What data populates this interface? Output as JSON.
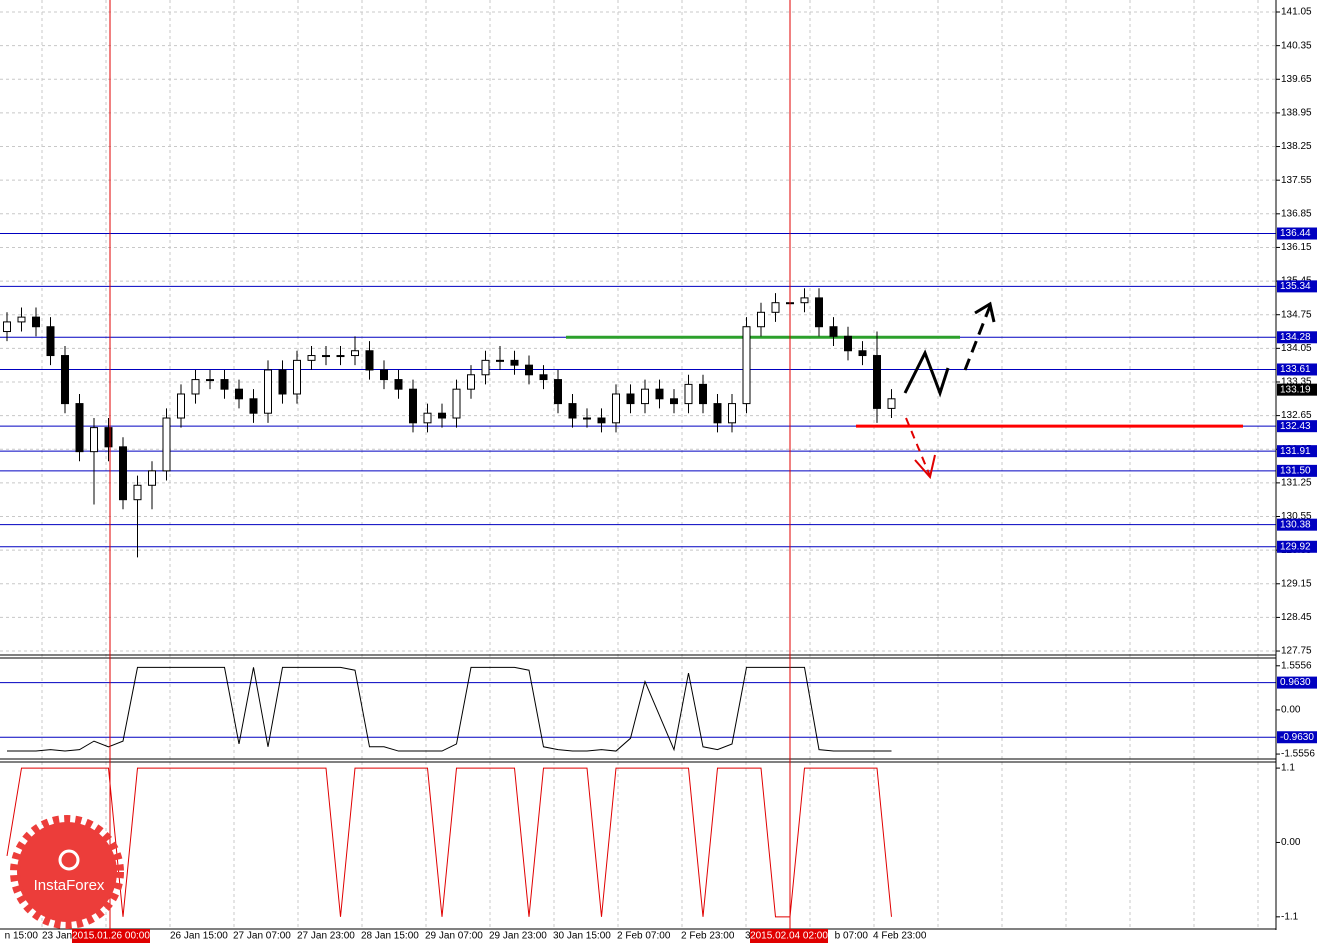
{
  "chart_data": [
    {
      "type": "candlestick",
      "open": [
        134.4,
        134.6,
        134.7,
        134.5,
        133.9,
        132.9,
        131.9,
        132.4,
        132.0,
        130.9,
        131.2,
        131.5,
        132.6,
        133.1,
        133.4,
        133.4,
        133.2,
        133.0,
        132.7,
        133.6,
        133.1,
        133.8,
        133.9,
        133.9,
        133.9,
        134.0,
        133.6,
        133.4,
        133.2,
        132.5,
        132.7,
        132.6,
        133.2,
        133.5,
        133.8,
        133.8,
        133.7,
        133.5,
        133.4,
        132.9,
        132.6,
        132.6,
        132.5,
        133.1,
        132.9,
        133.2,
        133.0,
        132.9,
        133.3,
        132.9,
        132.5,
        132.9,
        134.5,
        134.8,
        135.0,
        135.0,
        135.1,
        134.5,
        134.3,
        134.0,
        133.9,
        132.8
      ],
      "high": [
        134.8,
        134.9,
        134.9,
        134.7,
        134.1,
        133.1,
        132.6,
        132.6,
        132.2,
        131.4,
        131.7,
        132.8,
        133.3,
        133.6,
        133.6,
        133.6,
        133.4,
        133.2,
        133.8,
        133.8,
        134.0,
        134.1,
        134.1,
        134.1,
        134.3,
        134.2,
        133.8,
        133.6,
        133.4,
        132.9,
        132.9,
        133.4,
        133.7,
        134.0,
        134.1,
        134.0,
        133.9,
        133.7,
        133.6,
        133.1,
        132.8,
        132.8,
        133.3,
        133.3,
        133.4,
        133.4,
        133.2,
        133.5,
        133.5,
        133.1,
        133.1,
        134.7,
        135.0,
        135.2,
        135.3,
        135.3,
        135.3,
        134.7,
        134.5,
        134.2,
        134.4,
        133.2
      ],
      "low": [
        134.2,
        134.4,
        134.3,
        133.7,
        132.7,
        131.7,
        130.8,
        131.7,
        130.7,
        129.7,
        130.7,
        131.3,
        132.4,
        132.9,
        133.2,
        133.0,
        132.8,
        132.5,
        132.5,
        132.9,
        132.9,
        133.6,
        133.7,
        133.7,
        133.7,
        133.4,
        133.2,
        133.0,
        132.3,
        132.3,
        132.4,
        132.4,
        133.0,
        133.3,
        133.6,
        133.5,
        133.3,
        133.2,
        132.7,
        132.4,
        132.4,
        132.3,
        132.3,
        132.7,
        132.7,
        132.8,
        132.7,
        132.7,
        132.7,
        132.3,
        132.3,
        132.7,
        134.3,
        134.6,
        134.8,
        134.8,
        134.3,
        134.1,
        133.8,
        133.7,
        132.5,
        132.6
      ],
      "close": [
        134.6,
        134.7,
        134.5,
        133.9,
        132.9,
        131.9,
        132.4,
        132.0,
        130.9,
        131.2,
        131.5,
        132.6,
        133.1,
        133.4,
        133.4,
        133.2,
        133.0,
        132.7,
        133.6,
        133.1,
        133.8,
        133.9,
        133.9,
        133.9,
        134.0,
        133.6,
        133.4,
        133.2,
        132.5,
        132.7,
        132.6,
        133.2,
        133.5,
        133.8,
        133.8,
        133.7,
        133.5,
        133.4,
        132.9,
        132.6,
        132.6,
        132.5,
        133.1,
        132.9,
        133.2,
        133.0,
        132.9,
        133.3,
        132.9,
        132.5,
        132.9,
        134.5,
        134.8,
        135.0,
        135.0,
        135.1,
        134.5,
        134.3,
        134.0,
        133.9,
        132.8,
        133.0
      ],
      "ylim": [
        127.73,
        141.3
      ],
      "yticks": [
        127.75,
        128.45,
        129.15,
        129.85,
        130.55,
        131.25,
        131.95,
        132.65,
        133.35,
        134.05,
        134.75,
        135.45,
        136.15,
        136.85,
        137.55,
        138.25,
        138.95,
        139.65,
        140.35,
        141.05
      ],
      "levels": [
        136.44,
        135.34,
        134.28,
        133.61,
        132.43,
        131.91,
        {
          "value": 131.5,
          "label": "131.50"
        },
        130.38,
        129.92
      ],
      "level_color": "#0000c0",
      "current_price": 133.19,
      "trend_lines": [
        {
          "value": 134.28,
          "color": "#2ca02c"
        },
        {
          "value": 132.43,
          "color": "#ff0000"
        }
      ],
      "x_labels": [
        "n 15:00",
        "23 Jan",
        "26 Jan 15:00",
        "27 Jan 07:00",
        "27 Jan 23:00",
        "28 Jan 15:00",
        "29 Jan 07:00",
        "29 Jan 23:00",
        "30 Jan 15:00",
        "2 Feb 07:00",
        "2 Feb 23:00",
        "3",
        "b 07:00",
        "4 Feb 23:00"
      ],
      "time_markers": [
        "2015.01.26 00:00",
        "2015.02.04 02:00"
      ]
    },
    {
      "type": "line",
      "color": "#000000",
      "values": [
        -1.45,
        -1.45,
        -1.45,
        -1.4,
        -1.45,
        -1.4,
        -1.1,
        -1.3,
        -1.1,
        1.5,
        1.5,
        1.5,
        1.5,
        1.5,
        1.5,
        1.5,
        -1.2,
        1.5,
        -1.3,
        1.5,
        1.5,
        1.5,
        1.5,
        1.5,
        1.4,
        -1.3,
        -1.3,
        -1.45,
        -1.45,
        -1.45,
        -1.45,
        -1.2,
        1.5,
        1.5,
        1.5,
        1.5,
        1.4,
        -1.3,
        -1.4,
        -1.45,
        -1.45,
        -1.4,
        -1.45,
        -1.0,
        1.0,
        -0.2,
        -1.4,
        1.3,
        -1.3,
        -1.4,
        -1.2,
        1.5,
        1.5,
        1.5,
        1.5,
        1.5,
        -1.4,
        -1.45,
        -1.45,
        -1.45,
        -1.45,
        -1.45
      ],
      "ylim": [
        -1.73,
        1.83
      ],
      "yticks": [
        1.5556,
        {
          "value": 0,
          "label": "0.00"
        },
        -1.5556
      ],
      "levels": [
        {
          "value": 0.963,
          "label": "0.9630"
        },
        {
          "value": -0.963,
          "label": "-0.9630"
        }
      ],
      "level_color": "#0000c0"
    },
    {
      "type": "line",
      "color": "#e00000",
      "values": [
        -0.2,
        1.1,
        1.1,
        1.1,
        1.1,
        1.1,
        1.1,
        1.1,
        -1.1,
        1.1,
        1.1,
        1.1,
        1.1,
        1.1,
        1.1,
        1.1,
        1.1,
        1.1,
        1.1,
        1.1,
        1.1,
        1.1,
        1.1,
        -1.1,
        1.1,
        1.1,
        1.1,
        1.1,
        1.1,
        1.1,
        -1.1,
        1.1,
        1.1,
        1.1,
        1.1,
        1.1,
        -1.1,
        1.1,
        1.1,
        1.1,
        1.1,
        -1.1,
        1.1,
        1.1,
        1.1,
        1.1,
        1.1,
        1.1,
        -1.1,
        1.1,
        1.1,
        1.1,
        1.1,
        -1.1,
        -1.1,
        1.1,
        1.1,
        1.1,
        1.1,
        1.1,
        1.1,
        -1.1
      ],
      "ylim": [
        -1.28,
        1.19
      ],
      "yticks": [
        1.1,
        {
          "value": 0,
          "label": "0.00"
        },
        -1.1
      ]
    }
  ],
  "logo": "InstaForex"
}
